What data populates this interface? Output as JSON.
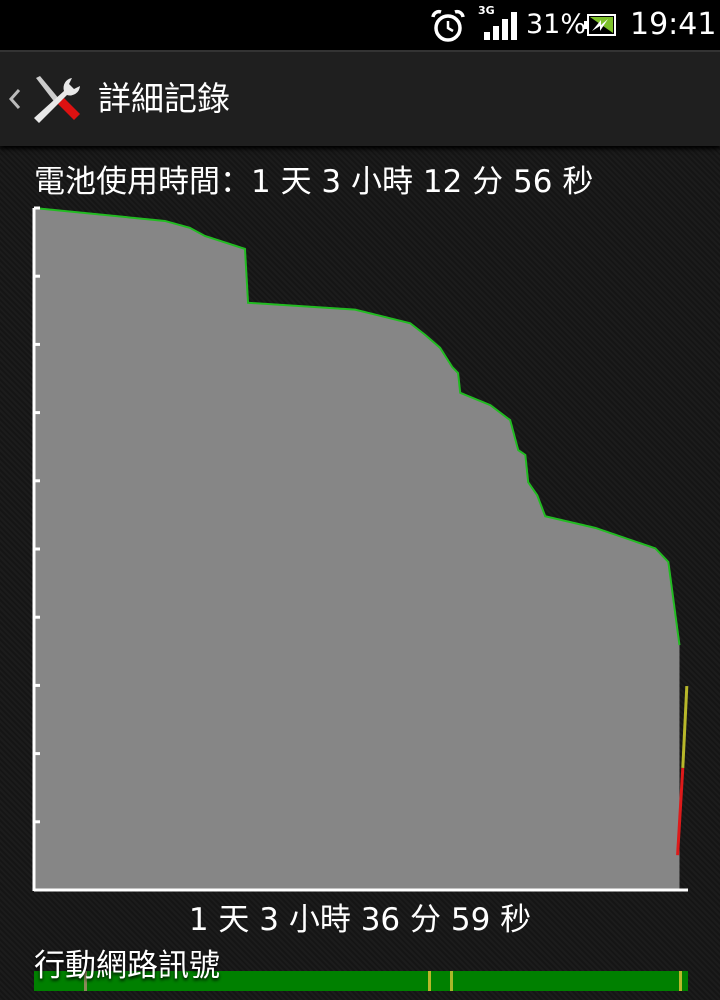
{
  "status_bar": {
    "icons": [
      "alarm-clock-icon",
      "3g-signal-icon",
      "battery-charging-icon"
    ],
    "network_type": "3G",
    "battery_percent": "31%",
    "time": "19:41"
  },
  "action_bar": {
    "title": "詳細記錄",
    "back_icon": "chevron-left-icon",
    "app_icon": "wrench-screwdriver-icon"
  },
  "battery_usage_label": "電池使用時間：1 天 3 小時 12 分 56 秒",
  "chart_data": {
    "type": "area",
    "title": "",
    "xlabel": "1 天 3 小時 36 分 59 秒",
    "ylabel": "",
    "x_unit": "hours",
    "xlim": [
      0,
      27.62
    ],
    "ylim": [
      0,
      100
    ],
    "y_ticks": [
      0,
      10,
      20,
      30,
      40,
      50,
      60,
      70,
      80,
      90,
      100
    ],
    "grid": false,
    "colors": {
      "fill": "#868686",
      "line": "#22bb22",
      "charge_high": "#b8b82a",
      "charge_low": "#dd1a1a",
      "axis": "#ffffff"
    },
    "series": [
      {
        "values": [
          [
            0,
            100
          ],
          [
            5.53,
            98.1
          ],
          [
            6.58,
            97.1
          ],
          [
            7.22,
            95.9
          ],
          [
            8.91,
            94
          ],
          [
            9.04,
            86.1
          ],
          [
            13.56,
            85.1
          ],
          [
            15.89,
            83.1
          ],
          [
            16.52,
            81.4
          ],
          [
            17.15,
            79.5
          ],
          [
            17.66,
            76.7
          ],
          [
            17.91,
            75.8
          ],
          [
            18.0,
            72.9
          ],
          [
            19.27,
            71.1
          ],
          [
            20.11,
            68.9
          ],
          [
            20.45,
            64.5
          ],
          [
            20.75,
            63.8
          ],
          [
            20.87,
            59.8
          ],
          [
            21.25,
            57.9
          ],
          [
            21.59,
            54.8
          ],
          [
            23.7,
            53.1
          ],
          [
            26.24,
            50.1
          ],
          [
            26.79,
            48.1
          ],
          [
            27.26,
            35.9
          ]
        ]
      },
      {
        "values": [
          [
            27.57,
            29.9
          ],
          [
            27.4,
            17.9
          ],
          [
            27.18,
            5.1
          ]
        ]
      }
    ]
  },
  "signal": {
    "label": "行動網路訊號",
    "color": "#008000",
    "marks": [
      {
        "at_hours": 2.12,
        "color": "#8a8a5a"
      },
      {
        "at_hours": 16.62,
        "color": "#b8b82a"
      },
      {
        "at_hours": 17.55,
        "color": "#a8b82a"
      },
      {
        "at_hours": 27.26,
        "color": "#b8b82a"
      }
    ]
  }
}
